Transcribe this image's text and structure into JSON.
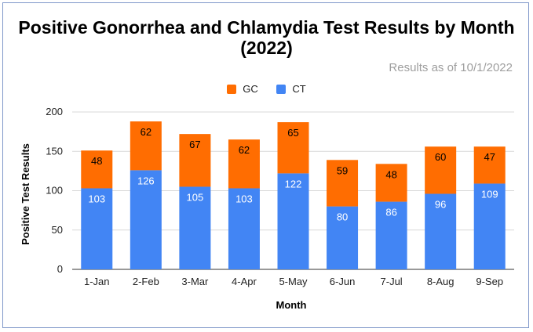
{
  "colors": {
    "gc": "#ff6d01",
    "ct": "#4285f4",
    "grid": "#d9d9d9",
    "gc_label": "#000000",
    "ct_label": "#ffffff"
  },
  "chart_data": {
    "type": "bar",
    "stacked": true,
    "title": "Positive Gonorrhea and Chlamydia Test Results by Month (2022)",
    "subtitle": "Results as of 10/1/2022",
    "xlabel": "Month",
    "ylabel": "Positive Test Results",
    "ylim": [
      0,
      200
    ],
    "yticks": [
      0,
      50,
      100,
      150,
      200
    ],
    "grid": true,
    "legend_position": "top",
    "categories": [
      "1-Jan",
      "2-Feb",
      "3-Mar",
      "4-Apr",
      "5-May",
      "6-Jun",
      "7-Jul",
      "8-Aug",
      "9-Sep"
    ],
    "series": [
      {
        "name": "CT",
        "values": [
          103,
          126,
          105,
          103,
          122,
          80,
          86,
          96,
          109
        ]
      },
      {
        "name": "GC",
        "values": [
          48,
          62,
          67,
          62,
          65,
          59,
          48,
          60,
          47
        ]
      }
    ]
  }
}
